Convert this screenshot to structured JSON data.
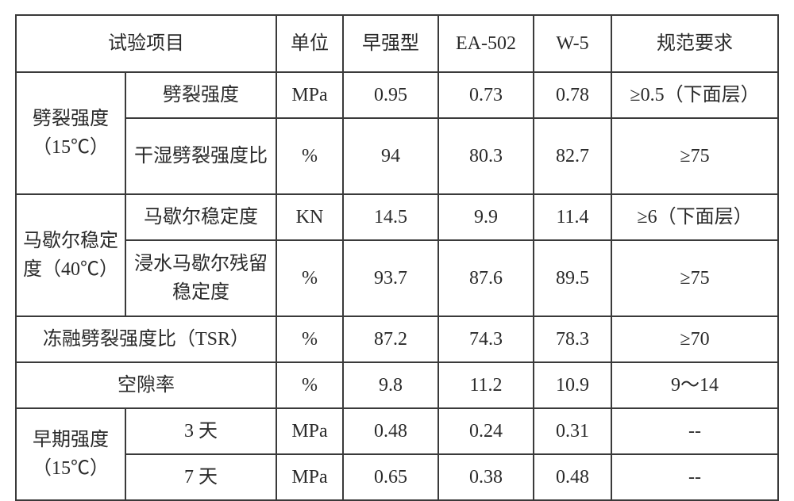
{
  "header": {
    "test_item": "试验项目",
    "unit": "单位",
    "col_a": "早强型",
    "col_b": "EA-502",
    "col_c": "W-5",
    "spec": "规范要求"
  },
  "group_split": {
    "label": "劈裂强度（15℃）",
    "row1": {
      "name": "劈裂强度",
      "unit": "MPa",
      "a": "0.95",
      "b": "0.73",
      "c": "0.78",
      "spec": "≥0.5（下面层）"
    },
    "row2": {
      "name": "干湿劈裂强度比",
      "unit": "%",
      "a": "94",
      "b": "80.3",
      "c": "82.7",
      "spec": "≥75"
    }
  },
  "group_marshall": {
    "label": "马歇尔稳定度（40℃）",
    "row1": {
      "name": "马歇尔稳定度",
      "unit": "KN",
      "a": "14.5",
      "b": "9.9",
      "c": "11.4",
      "spec": "≥6（下面层）"
    },
    "row2": {
      "name": "浸水马歇尔残留稳定度",
      "unit": "%",
      "a": "93.7",
      "b": "87.6",
      "c": "89.5",
      "spec": "≥75"
    }
  },
  "tsr": {
    "name": "冻融劈裂强度比（TSR）",
    "unit": "%",
    "a": "87.2",
    "b": "74.3",
    "c": "78.3",
    "spec": "≥70"
  },
  "void": {
    "name": "空隙率",
    "unit": "%",
    "a": "9.8",
    "b": "11.2",
    "c": "10.9",
    "spec": "9～14"
  },
  "group_early": {
    "label": "早期强度（15℃）",
    "row1": {
      "name": "3 天",
      "unit": "MPa",
      "a": "0.48",
      "b": "0.24",
      "c": "0.31",
      "spec": "--"
    },
    "row2": {
      "name": "7 天",
      "unit": "MPa",
      "a": "0.65",
      "b": "0.38",
      "c": "0.48",
      "spec": "--"
    }
  }
}
